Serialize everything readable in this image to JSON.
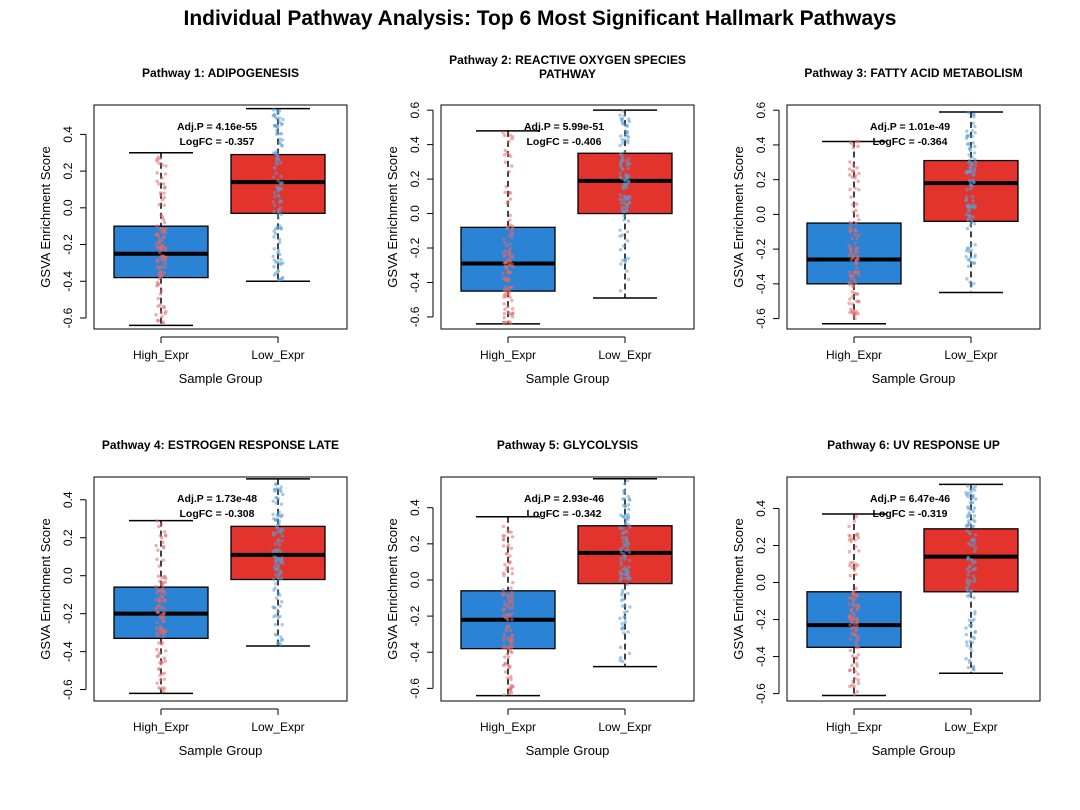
{
  "figure_title": "Individual Pathway Analysis: Top 6 Most Significant Hallmark Pathways",
  "colors": {
    "high_box": "#2b83d6",
    "low_box": "#e2342c",
    "high_points": "#e46a6a",
    "low_points": "#5a9fd6"
  },
  "chart_data": [
    {
      "type": "box",
      "title_lines": [
        "Pathway 1: ADIPOGENESIS"
      ],
      "xlabel": "Sample Group",
      "ylabel": "GSVA Enrichment Score",
      "categories": [
        "High_Expr",
        "Low_Expr"
      ],
      "ylim": [
        -0.66,
        0.56
      ],
      "yticks": [
        -0.6,
        -0.4,
        -0.2,
        0.0,
        0.2,
        0.4
      ],
      "ytick_labels": [
        "-0.6",
        "-0.4",
        "-0.2",
        "0.0",
        "0.2",
        "0.4"
      ],
      "boxes": [
        {
          "group": "High_Expr",
          "min": -0.64,
          "q1": -0.38,
          "median": -0.25,
          "q3": -0.1,
          "max": 0.3
        },
        {
          "group": "Low_Expr",
          "min": -0.4,
          "q1": -0.03,
          "median": 0.14,
          "q3": 0.29,
          "max": 0.54
        }
      ],
      "annotation": {
        "adj_p": "Adj.P = 4.16e-55",
        "logfc": "LogFC = -0.357"
      }
    },
    {
      "type": "box",
      "title_lines": [
        "Pathway 2: REACTIVE OXYGEN SPECIES",
        "PATHWAY"
      ],
      "xlabel": "Sample Group",
      "ylabel": "GSVA Enrichment Score",
      "categories": [
        "High_Expr",
        "Low_Expr"
      ],
      "ylim": [
        -0.67,
        0.63
      ],
      "yticks": [
        -0.6,
        -0.4,
        -0.2,
        0.0,
        0.2,
        0.4,
        0.6
      ],
      "ytick_labels": [
        "-0.6",
        "-0.4",
        "-0.2",
        "0.0",
        "0.2",
        "0.4",
        "0.6"
      ],
      "boxes": [
        {
          "group": "High_Expr",
          "min": -0.64,
          "q1": -0.45,
          "median": -0.29,
          "q3": -0.08,
          "max": 0.48
        },
        {
          "group": "Low_Expr",
          "min": -0.49,
          "q1": 0.0,
          "median": 0.19,
          "q3": 0.35,
          "max": 0.6
        }
      ],
      "annotation": {
        "adj_p": "Adj.P = 5.99e-51",
        "logfc": "LogFC = -0.406"
      }
    },
    {
      "type": "box",
      "title_lines": [
        "Pathway 3: FATTY ACID METABOLISM"
      ],
      "xlabel": "Sample Group",
      "ylabel": "GSVA Enrichment Score",
      "categories": [
        "High_Expr",
        "Low_Expr"
      ],
      "ylim": [
        -0.66,
        0.63
      ],
      "yticks": [
        -0.6,
        -0.4,
        -0.2,
        0.0,
        0.2,
        0.4,
        0.6
      ],
      "ytick_labels": [
        "-0.6",
        "-0.4",
        "-0.2",
        "0.0",
        "0.2",
        "0.4",
        "0.6"
      ],
      "boxes": [
        {
          "group": "High_Expr",
          "min": -0.63,
          "q1": -0.4,
          "median": -0.26,
          "q3": -0.05,
          "max": 0.42
        },
        {
          "group": "Low_Expr",
          "min": -0.45,
          "q1": -0.04,
          "median": 0.18,
          "q3": 0.31,
          "max": 0.59
        }
      ],
      "annotation": {
        "adj_p": "Adj.P = 1.01e-49",
        "logfc": "LogFC = -0.364"
      }
    },
    {
      "type": "box",
      "title_lines": [
        "Pathway 4: ESTROGEN RESPONSE LATE"
      ],
      "xlabel": "Sample Group",
      "ylabel": "GSVA Enrichment Score",
      "categories": [
        "High_Expr",
        "Low_Expr"
      ],
      "ylim": [
        -0.66,
        0.52
      ],
      "yticks": [
        -0.6,
        -0.4,
        -0.2,
        0.0,
        0.2,
        0.4
      ],
      "ytick_labels": [
        "-0.6",
        "-0.4",
        "-0.2",
        "0.0",
        "0.2",
        "0.4"
      ],
      "boxes": [
        {
          "group": "High_Expr",
          "min": -0.62,
          "q1": -0.33,
          "median": -0.2,
          "q3": -0.06,
          "max": 0.29
        },
        {
          "group": "Low_Expr",
          "min": -0.37,
          "q1": -0.02,
          "median": 0.11,
          "q3": 0.26,
          "max": 0.51
        }
      ],
      "annotation": {
        "adj_p": "Adj.P = 1.73e-48",
        "logfc": "LogFC = -0.308"
      }
    },
    {
      "type": "box",
      "title_lines": [
        "Pathway 5: GLYCOLYSIS"
      ],
      "xlabel": "Sample Group",
      "ylabel": "GSVA Enrichment Score",
      "categories": [
        "High_Expr",
        "Low_Expr"
      ],
      "ylim": [
        -0.67,
        0.57
      ],
      "yticks": [
        -0.6,
        -0.4,
        -0.2,
        0.0,
        0.2,
        0.4
      ],
      "ytick_labels": [
        "-0.6",
        "-0.4",
        "-0.2",
        "0.0",
        "0.2",
        "0.4"
      ],
      "boxes": [
        {
          "group": "High_Expr",
          "min": -0.64,
          "q1": -0.38,
          "median": -0.22,
          "q3": -0.06,
          "max": 0.35
        },
        {
          "group": "Low_Expr",
          "min": -0.48,
          "q1": -0.02,
          "median": 0.15,
          "q3": 0.3,
          "max": 0.56
        }
      ],
      "annotation": {
        "adj_p": "Adj.P = 2.93e-46",
        "logfc": "LogFC = -0.342"
      }
    },
    {
      "type": "box",
      "title_lines": [
        "Pathway 6: UV RESPONSE UP"
      ],
      "xlabel": "Sample Group",
      "ylabel": "GSVA Enrichment Score",
      "categories": [
        "High_Expr",
        "Low_Expr"
      ],
      "ylim": [
        -0.64,
        0.57
      ],
      "yticks": [
        -0.6,
        -0.4,
        -0.2,
        0.0,
        0.2,
        0.4
      ],
      "ytick_labels": [
        "-0.6",
        "-0.4",
        "-0.2",
        "0.0",
        "0.2",
        "0.4"
      ],
      "boxes": [
        {
          "group": "High_Expr",
          "min": -0.61,
          "q1": -0.35,
          "median": -0.23,
          "q3": -0.05,
          "max": 0.37
        },
        {
          "group": "Low_Expr",
          "min": -0.49,
          "q1": -0.05,
          "median": 0.14,
          "q3": 0.29,
          "max": 0.53
        }
      ],
      "annotation": {
        "adj_p": "Adj.P = 6.47e-46",
        "logfc": "LogFC = -0.319"
      }
    }
  ]
}
